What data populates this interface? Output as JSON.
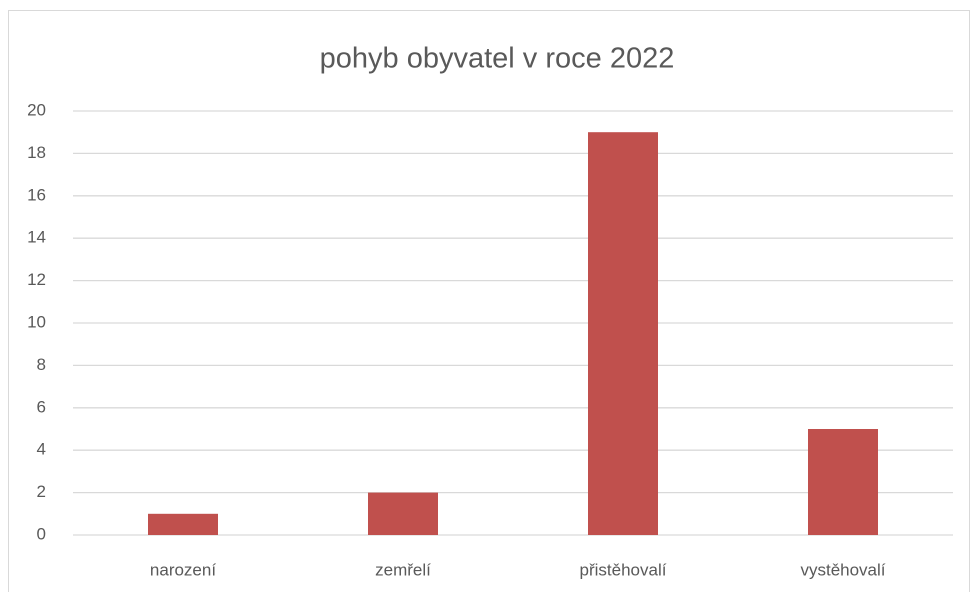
{
  "chart_data": {
    "type": "bar",
    "title": "pohyb obyvatel v roce 2022",
    "categories": [
      "narození",
      "zemřelí",
      "přistěhovalí",
      "vystěhovalí"
    ],
    "values": [
      1,
      2,
      19,
      5
    ],
    "color": "#c0504d",
    "ylim": [
      0,
      20
    ],
    "yticks": [
      0,
      2,
      4,
      6,
      8,
      10,
      12,
      14,
      16,
      18,
      20
    ],
    "grid": true
  }
}
